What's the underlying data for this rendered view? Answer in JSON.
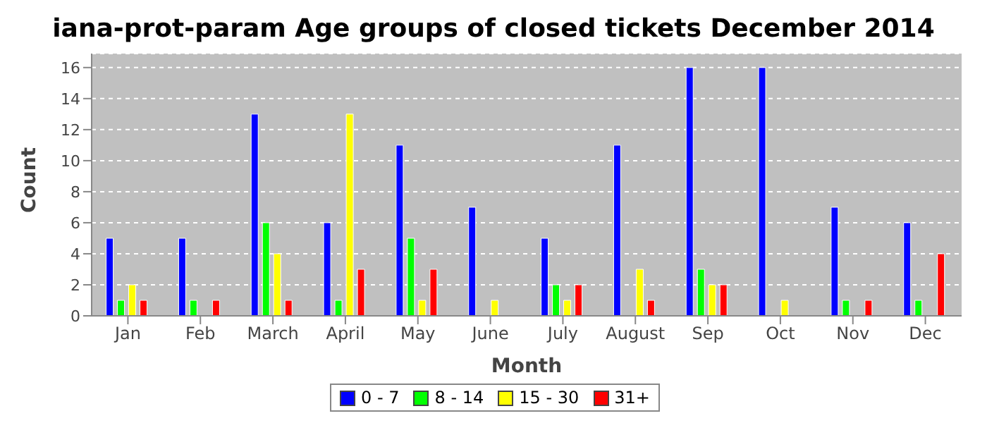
{
  "chart_data": {
    "type": "bar",
    "title": "iana-prot-param Age groups of closed tickets December 2014",
    "xlabel": "Month",
    "ylabel": "Count",
    "categories": [
      "Jan",
      "Feb",
      "March",
      "April",
      "May",
      "June",
      "July",
      "August",
      "Sep",
      "Oct",
      "Nov",
      "Dec"
    ],
    "series": [
      {
        "name": "0 - 7",
        "color": "#0000ff",
        "values": [
          5,
          5,
          13,
          6,
          11,
          7,
          5,
          11,
          16,
          16,
          7,
          6
        ]
      },
      {
        "name": "8 - 14",
        "color": "#00ff00",
        "values": [
          1,
          1,
          6,
          1,
          5,
          0,
          2,
          0,
          3,
          0,
          1,
          1
        ]
      },
      {
        "name": "15 - 30",
        "color": "#ffff00",
        "values": [
          2,
          0,
          4,
          13,
          1,
          1,
          1,
          3,
          2,
          1,
          0,
          0
        ]
      },
      {
        "name": "31+",
        "color": "#ff0000",
        "values": [
          1,
          1,
          1,
          3,
          3,
          0,
          2,
          1,
          2,
          0,
          1,
          4
        ]
      }
    ],
    "ylim": [
      0,
      16.9
    ],
    "yticks": [
      0,
      2,
      4,
      6,
      8,
      10,
      12,
      14,
      16
    ],
    "grid": "y",
    "legend": "bottom"
  }
}
